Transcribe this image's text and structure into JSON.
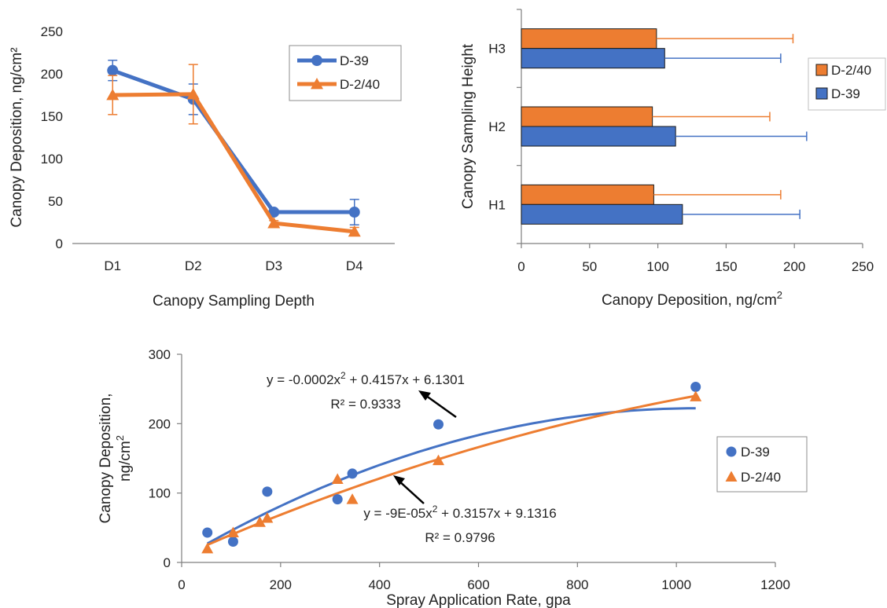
{
  "colors": {
    "d39": "#4472C4",
    "d240": "#ED7D31",
    "axis": "#7f7f7f",
    "text": "#222222"
  },
  "chart_data": [
    {
      "type": "line",
      "xlabel": "Canopy Sampling Depth",
      "ylabel": "Canopy Deposition, ng/cm²",
      "categories": [
        "D1",
        "D2",
        "D3",
        "D4"
      ],
      "ylim": [
        0,
        250
      ],
      "yticks": [
        0,
        50,
        100,
        150,
        200,
        250
      ],
      "legend": "top-right",
      "series": [
        {
          "name": "D-39",
          "values": [
            204,
            170,
            37,
            37
          ],
          "errors": [
            12,
            18,
            3,
            15
          ],
          "marker": "circle"
        },
        {
          "name": "D-2/40",
          "values": [
            175,
            176,
            24,
            14
          ],
          "errors": [
            23,
            35,
            3,
            5
          ],
          "marker": "triangle"
        }
      ]
    },
    {
      "type": "bar",
      "orientation": "horizontal",
      "xlabel": "Canopy Deposition, ng/cm",
      "xlabel_sup": "2",
      "ylabel": "Canopy Sampling Height",
      "categories": [
        "H1",
        "H2",
        "H3"
      ],
      "xlim": [
        0,
        250
      ],
      "xticks": [
        0,
        50,
        100,
        150,
        200,
        250
      ],
      "legend": "right",
      "series": [
        {
          "name": "D-2/40",
          "values": [
            97,
            96,
            99
          ],
          "errors": [
            93,
            86,
            100
          ]
        },
        {
          "name": "D-39",
          "values": [
            118,
            113,
            105
          ],
          "errors": [
            86,
            96,
            85
          ]
        }
      ]
    },
    {
      "type": "scatter",
      "xlabel": "Spray Application Rate, gpa",
      "ylabel_line1": "Canopy Deposition,",
      "ylabel_line2": "ng/cm",
      "ylabel_sup": "2",
      "xlim": [
        0,
        1200
      ],
      "ylim": [
        0,
        300
      ],
      "xticks": [
        0,
        200,
        400,
        600,
        800,
        1000,
        1200
      ],
      "yticks": [
        0,
        100,
        200,
        300
      ],
      "legend": "right",
      "series": [
        {
          "name": "D-39",
          "marker": "circle",
          "x": [
            52,
            104,
            173,
            315,
            345,
            519,
            1039
          ],
          "y": [
            43,
            30,
            102,
            91,
            128,
            199,
            253
          ],
          "trendline": {
            "a": -0.0002,
            "b": 0.4157,
            "c": 6.1301
          },
          "equation_prefix": "y = -0.0002x",
          "equation_sup": "2",
          "equation_suffix": " + 0.4157x + 6.1301",
          "r2": "R² = 0.9333"
        },
        {
          "name": "D-2/40",
          "marker": "triangle",
          "x": [
            52,
            104,
            158,
            173,
            315,
            345,
            519,
            1039
          ],
          "y": [
            20,
            43,
            58,
            64,
            120,
            91,
            147,
            239
          ],
          "trendline": {
            "a": -9e-05,
            "b": 0.3157,
            "c": 9.1316
          },
          "equation_prefix": "y = -9E-05x",
          "equation_sup": "2",
          "equation_suffix": " + 0.3157x + 9.1316",
          "r2": "R² = 0.9796"
        }
      ]
    }
  ]
}
